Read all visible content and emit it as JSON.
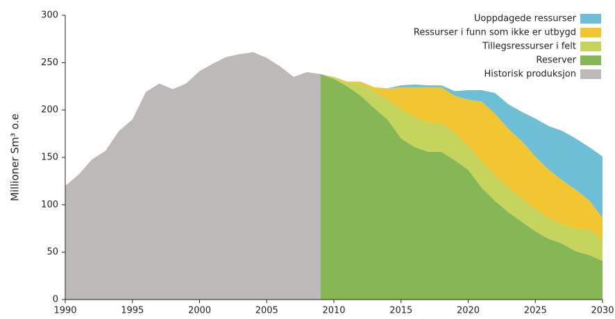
{
  "chart_data": {
    "type": "area",
    "stacked": true,
    "ylabel": "Millioner Sm³ o.e",
    "x": [
      1990,
      1991,
      1992,
      1993,
      1994,
      1995,
      1996,
      1997,
      1998,
      1999,
      2000,
      2001,
      2002,
      2003,
      2004,
      2005,
      2006,
      2007,
      2008,
      2009,
      2010,
      2011,
      2012,
      2013,
      2014,
      2015,
      2016,
      2017,
      2018,
      2019,
      2020,
      2021,
      2022,
      2023,
      2024,
      2025,
      2026,
      2027,
      2028,
      2029,
      2030
    ],
    "series": [
      {
        "name": "Historisk produksjon",
        "color": "#bcb9b7",
        "stack": false,
        "values": [
          120,
          132,
          148,
          157,
          178,
          190,
          219,
          228,
          222,
          228,
          241,
          249,
          256,
          259,
          261,
          255,
          246,
          235,
          240,
          238,
          null,
          null,
          null,
          null,
          null,
          null,
          null,
          null,
          null,
          null,
          null,
          null,
          null,
          null,
          null,
          null,
          null,
          null,
          null,
          null,
          null
        ]
      },
      {
        "name": "Reserver",
        "color": "#86b756",
        "values": [
          null,
          null,
          null,
          null,
          null,
          null,
          null,
          null,
          null,
          null,
          null,
          null,
          null,
          null,
          null,
          null,
          null,
          null,
          null,
          238,
          233,
          225,
          215,
          202,
          190,
          170,
          161,
          156,
          156,
          147,
          137,
          118,
          104,
          92,
          82,
          72,
          64,
          59,
          51,
          47,
          41
        ]
      },
      {
        "name": "Tillegsressurser i felt",
        "color": "#c5d45c",
        "values": [
          null,
          null,
          null,
          null,
          null,
          null,
          null,
          null,
          null,
          null,
          null,
          null,
          null,
          null,
          null,
          null,
          null,
          null,
          null,
          0,
          1,
          4,
          13,
          18,
          21,
          31,
          32,
          31,
          30,
          29,
          25,
          28,
          27,
          26,
          25,
          24,
          22,
          21,
          24,
          27,
          23
        ]
      },
      {
        "name": "Ressurser i funn som ikke er utbygd",
        "color": "#f2c630",
        "values": [
          null,
          null,
          null,
          null,
          null,
          null,
          null,
          null,
          null,
          null,
          null,
          null,
          null,
          null,
          null,
          null,
          null,
          null,
          null,
          0,
          1,
          1,
          2,
          4,
          12,
          23,
          31,
          37,
          38,
          39,
          49,
          63,
          65,
          62,
          60,
          55,
          51,
          46,
          41,
          31,
          22
        ]
      },
      {
        "name": "Uoppdagede ressurser",
        "color": "#6cbfd5",
        "values": [
          null,
          null,
          null,
          null,
          null,
          null,
          null,
          null,
          null,
          null,
          null,
          null,
          null,
          null,
          null,
          null,
          null,
          null,
          null,
          0,
          0,
          0,
          0,
          0,
          0,
          2,
          3,
          2,
          2,
          5,
          10,
          12,
          22,
          26,
          31,
          40,
          46,
          52,
          54,
          56,
          65
        ]
      }
    ],
    "xlim": [
      1990,
      2030
    ],
    "xticks": [
      1990,
      1995,
      2000,
      2005,
      2010,
      2015,
      2020,
      2025,
      2030
    ],
    "ylim": [
      0,
      300
    ],
    "yticks": [
      0,
      50,
      100,
      150,
      200,
      250,
      300
    ],
    "legend": "top-right"
  }
}
